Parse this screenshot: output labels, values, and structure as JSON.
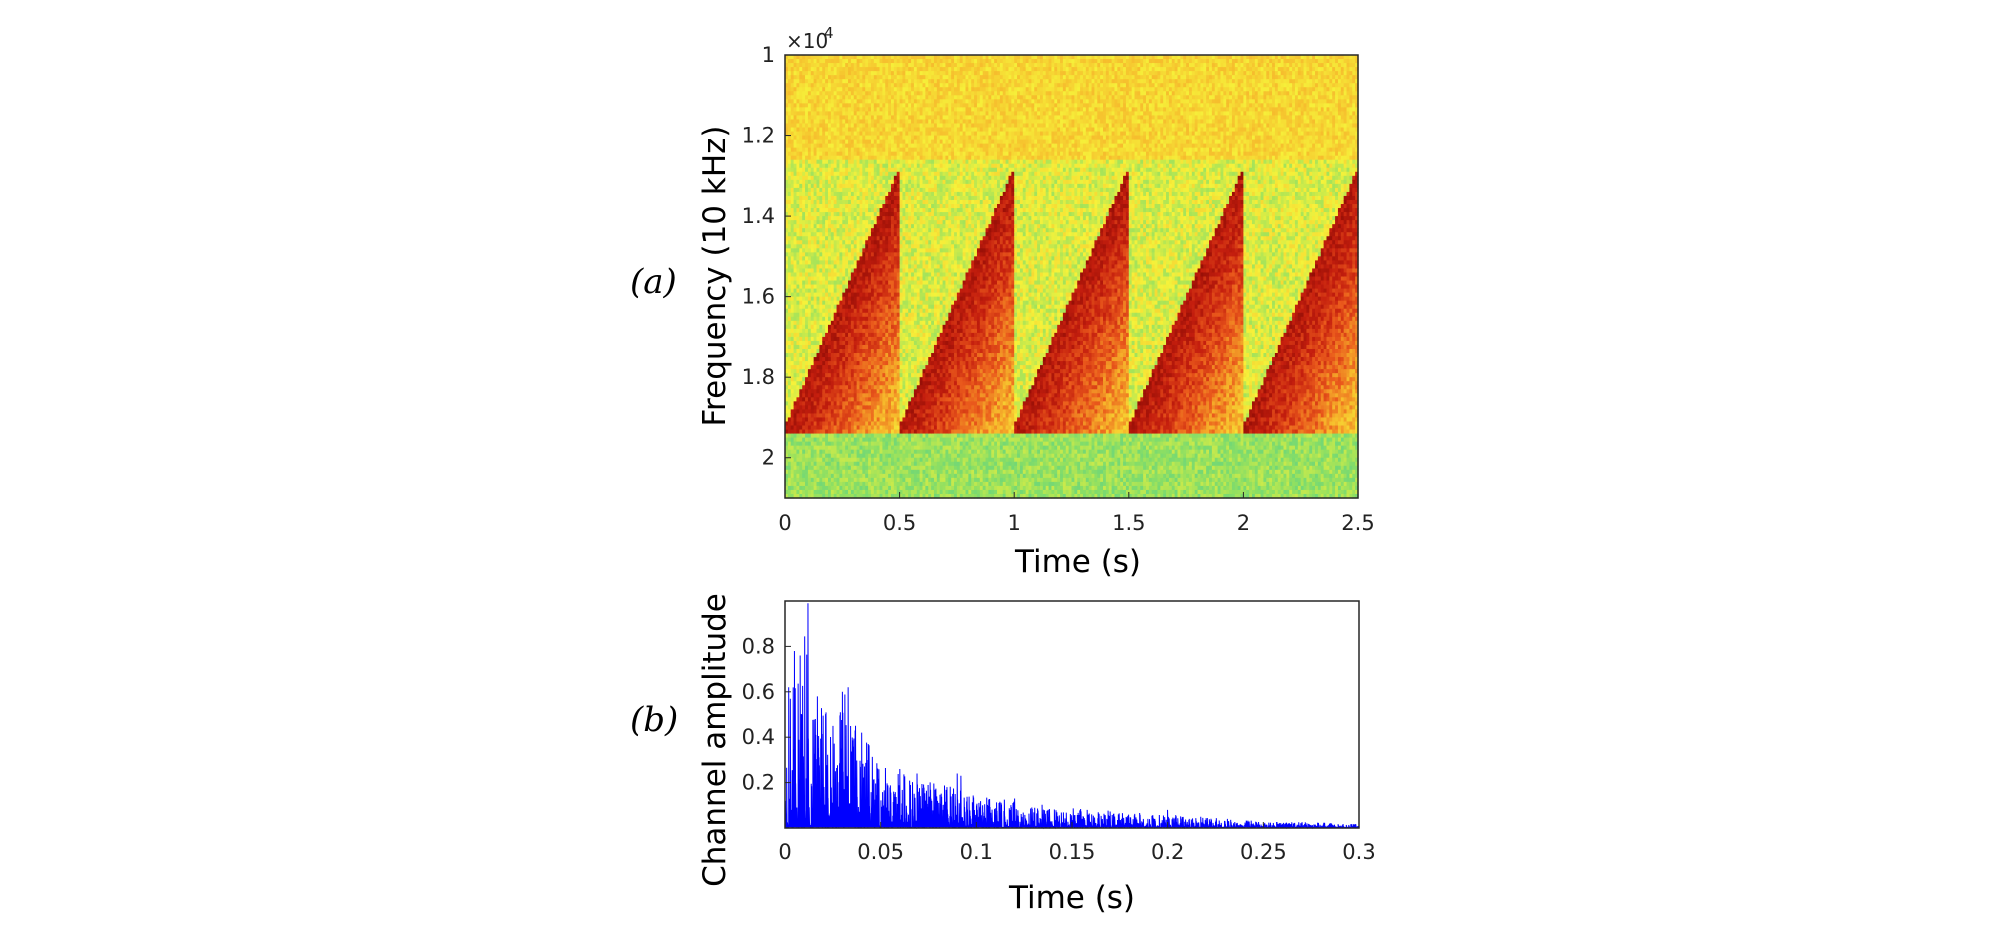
{
  "panels": {
    "a_label": "(a)",
    "b_label": "(b)"
  },
  "chart_data": [
    {
      "type": "heatmap",
      "panel": "(a)",
      "title": "",
      "xlabel": "Time (s)",
      "ylabel": "Frequency (10 kHz)",
      "y_exponent_label": "×10",
      "y_exponent_power": "4",
      "xlim": [
        0,
        2.5
      ],
      "ylim": [
        1.0,
        2.1
      ],
      "y_reversed": true,
      "xticks": [
        "0",
        "0.5",
        "1",
        "1.5",
        "2",
        "2.5"
      ],
      "xtick_values": [
        0,
        0.5,
        1,
        1.5,
        2,
        2.5
      ],
      "yticks": [
        "1",
        "1.2",
        "1.4",
        "1.6",
        "1.8",
        "2"
      ],
      "ytick_values": [
        1.0,
        1.2,
        1.4,
        1.6,
        1.8,
        2.0
      ],
      "chirp": {
        "period_s": 0.5,
        "start_times_s": [
          0,
          0.5,
          1.0,
          1.5,
          2.0
        ],
        "f_start": 1.92,
        "f_end": 1.28,
        "sweep_duration_s": 0.5
      },
      "colormap": [
        "#2fc4a6",
        "#8ddf63",
        "#f6f23a",
        "#f6b52b",
        "#ea5a1c",
        "#c41e0e",
        "#8f0c05"
      ]
    },
    {
      "type": "line",
      "panel": "(b)",
      "title": "",
      "xlabel": "Time (s)",
      "ylabel": "Channel amplitude",
      "xlim": [
        0,
        0.3
      ],
      "ylim": [
        0,
        1.0
      ],
      "xticks": [
        "0",
        "0.05",
        "0.1",
        "0.15",
        "0.2",
        "0.25",
        "0.3"
      ],
      "xtick_values": [
        0,
        0.05,
        0.1,
        0.15,
        0.2,
        0.25,
        0.3
      ],
      "yticks": [
        "0.2",
        "0.4",
        "0.6",
        "0.8"
      ],
      "ytick_values": [
        0.2,
        0.4,
        0.6,
        0.8
      ],
      "series": [
        {
          "color": "#0000ff",
          "envelope_x": [
            0,
            0.002,
            0.005,
            0.008,
            0.012,
            0.015,
            0.02,
            0.025,
            0.03,
            0.035,
            0.04,
            0.05,
            0.06,
            0.07,
            0.08,
            0.09,
            0.1,
            0.12,
            0.15,
            0.18,
            0.2,
            0.25,
            0.3
          ],
          "envelope_y": [
            0.62,
            0.58,
            0.78,
            0.76,
            0.99,
            0.55,
            0.58,
            0.45,
            0.62,
            0.52,
            0.42,
            0.28,
            0.25,
            0.22,
            0.2,
            0.18,
            0.14,
            0.12,
            0.09,
            0.07,
            0.06,
            0.03,
            0.02
          ],
          "peaks_x": [
            0.002,
            0.005,
            0.008,
            0.012,
            0.017,
            0.025,
            0.033,
            0.04,
            0.06,
            0.069,
            0.09,
            0.092,
            0.12,
            0.2
          ],
          "peaks_y": [
            0.62,
            0.78,
            0.76,
            0.99,
            0.58,
            0.45,
            0.62,
            0.42,
            0.26,
            0.24,
            0.24,
            0.23,
            0.13,
            0.08
          ]
        }
      ]
    }
  ]
}
